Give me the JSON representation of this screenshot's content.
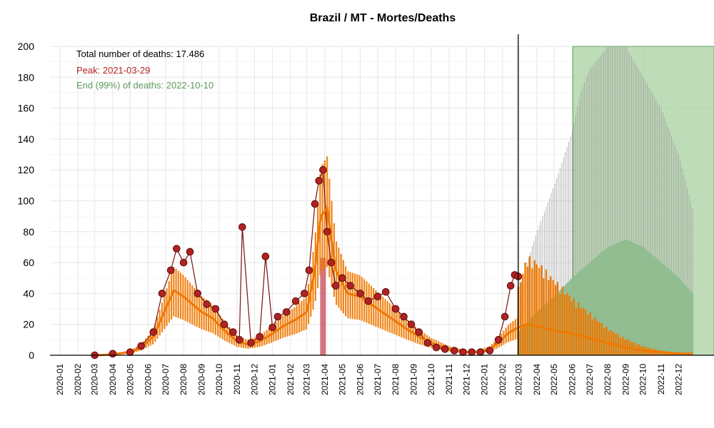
{
  "chart_data": {
    "type": "line",
    "title": "Brazil / MT - Mortes/Deaths",
    "xlabel": "",
    "ylabel": "",
    "ylim": [
      0,
      200
    ],
    "yticks": [
      0,
      20,
      40,
      60,
      80,
      100,
      120,
      140,
      160,
      180,
      200
    ],
    "xlim": [
      "2019-12-15",
      "2023-01-31"
    ],
    "xticks": [
      "2020-01",
      "2020-02",
      "2020-03",
      "2020-04",
      "2020-05",
      "2020-06",
      "2020-07",
      "2020-08",
      "2020-09",
      "2020-10",
      "2020-11",
      "2020-12",
      "2021-01",
      "2021-02",
      "2021-03",
      "2021-04",
      "2021-05",
      "2021-06",
      "2021-07",
      "2021-08",
      "2021-09",
      "2021-10",
      "2021-11",
      "2021-12",
      "2022-01",
      "2022-02",
      "2022-03",
      "2022-04",
      "2022-05",
      "2022-06",
      "2022-07",
      "2022-08",
      "2022-09",
      "2022-10",
      "2022-11",
      "2022-12"
    ],
    "grid": true,
    "annotations": {
      "total": "Total number of deaths: 17.486",
      "peak": "Peak: 2021-03-29",
      "end": "End (99%) of deaths: 2022-10-10"
    },
    "colors": {
      "observed": "#b22222",
      "observed_line": "#7a1010",
      "fit": "#f07800",
      "peak_band": "#cd5c6c",
      "forecast_gray": "#999999",
      "forecast_green": "#8fbc8f",
      "end_band": "#a8d0a0"
    },
    "last_observed_date": "2022-02-28",
    "peak_band": [
      "2021-03-24",
      "2021-04-03"
    ],
    "end_band_start": "2022-06-02",
    "observed_smooth": {
      "dates": [
        "2020-03-01",
        "2020-04-01",
        "2020-05-01",
        "2020-05-20",
        "2020-06-10",
        "2020-07-01",
        "2020-07-15",
        "2020-08-01",
        "2020-09-01",
        "2020-09-20",
        "2020-10-10",
        "2020-11-01",
        "2020-11-20",
        "2020-12-10",
        "2021-01-01",
        "2021-01-20",
        "2021-02-10",
        "2021-03-01",
        "2021-03-15",
        "2021-03-25",
        "2021-04-05",
        "2021-04-20",
        "2021-05-10",
        "2021-06-01",
        "2021-07-01",
        "2021-08-01",
        "2021-08-20",
        "2021-09-10",
        "2021-10-01",
        "2021-11-01",
        "2021-12-01",
        "2021-12-20",
        "2022-01-10",
        "2022-01-25",
        "2022-02-10",
        "2022-02-28"
      ],
      "values": [
        0,
        0.5,
        2,
        5,
        12,
        30,
        42,
        38,
        28,
        24,
        16,
        9,
        7,
        9,
        14,
        19,
        23,
        28,
        55,
        90,
        95,
        55,
        40,
        38,
        30,
        22,
        17,
        12,
        8,
        4,
        2,
        2,
        4,
        8,
        14,
        18
      ]
    },
    "observed_points": {
      "dates": [
        "2020-03-01",
        "2020-04-01",
        "2020-05-01",
        "2020-05-20",
        "2020-06-10",
        "2020-06-25",
        "2020-07-10",
        "2020-07-20",
        "2020-08-01",
        "2020-08-12",
        "2020-08-25",
        "2020-09-10",
        "2020-09-25",
        "2020-10-10",
        "2020-10-25",
        "2020-11-05",
        "2020-11-10",
        "2020-11-25",
        "2020-12-10",
        "2020-12-20",
        "2021-01-01",
        "2021-01-10",
        "2021-01-25",
        "2021-02-10",
        "2021-02-25",
        "2021-03-05",
        "2021-03-15",
        "2021-03-22",
        "2021-03-29",
        "2021-04-05",
        "2021-04-12",
        "2021-04-20",
        "2021-05-01",
        "2021-05-15",
        "2021-06-01",
        "2021-06-15",
        "2021-07-01",
        "2021-07-15",
        "2021-08-01",
        "2021-08-15",
        "2021-08-28",
        "2021-09-10",
        "2021-09-25",
        "2021-10-10",
        "2021-10-25",
        "2021-11-10",
        "2021-11-25",
        "2021-12-10",
        "2021-12-25",
        "2022-01-10",
        "2022-01-25",
        "2022-02-05",
        "2022-02-15",
        "2022-02-22",
        "2022-02-28"
      ],
      "values": [
        0,
        1,
        2,
        6,
        15,
        40,
        55,
        69,
        60,
        67,
        40,
        33,
        30,
        20,
        15,
        10,
        83,
        8,
        12,
        64,
        18,
        25,
        28,
        35,
        40,
        55,
        98,
        113,
        120,
        80,
        60,
        45,
        50,
        45,
        40,
        35,
        38,
        41,
        30,
        25,
        20,
        15,
        8,
        5,
        4,
        3,
        2,
        2,
        2,
        3,
        10,
        25,
        45,
        52,
        51
      ]
    },
    "forecast_smooth": {
      "dates": [
        "2022-02-28",
        "2022-03-15",
        "2022-04-01",
        "2022-05-01",
        "2022-06-01",
        "2022-07-01",
        "2022-08-01",
        "2022-09-01",
        "2022-10-01",
        "2022-11-01",
        "2022-12-01",
        "2022-12-25"
      ],
      "values": [
        18,
        20,
        19,
        16,
        14,
        11,
        8,
        5,
        3,
        2,
        1,
        1
      ]
    },
    "forecast_orange_upper": {
      "dates": [
        "2022-02-28",
        "2022-03-15",
        "2022-04-01",
        "2022-05-01",
        "2022-06-01",
        "2022-07-01",
        "2022-08-01",
        "2022-09-01",
        "2022-10-01",
        "2022-11-01",
        "2022-12-01",
        "2022-12-25"
      ],
      "values": [
        45,
        65,
        62,
        50,
        38,
        28,
        18,
        11,
        6,
        3,
        2,
        1
      ]
    },
    "forecast_gray_upper": {
      "dates": [
        "2022-02-28",
        "2022-03-15",
        "2022-04-01",
        "2022-05-01",
        "2022-06-01",
        "2022-06-15",
        "2022-07-01",
        "2022-08-01",
        "2022-09-01",
        "2022-10-01",
        "2022-11-01",
        "2022-12-01",
        "2022-12-25"
      ],
      "values": [
        40,
        60,
        80,
        110,
        145,
        170,
        185,
        200,
        200,
        180,
        160,
        130,
        95
      ]
    },
    "forecast_green_mid": {
      "dates": [
        "2022-02-28",
        "2022-04-01",
        "2022-05-01",
        "2022-06-01",
        "2022-07-01",
        "2022-08-01",
        "2022-09-01",
        "2022-10-01",
        "2022-11-01",
        "2022-12-01",
        "2022-12-25"
      ],
      "values": [
        15,
        28,
        38,
        50,
        60,
        70,
        75,
        70,
        60,
        50,
        40
      ]
    }
  }
}
